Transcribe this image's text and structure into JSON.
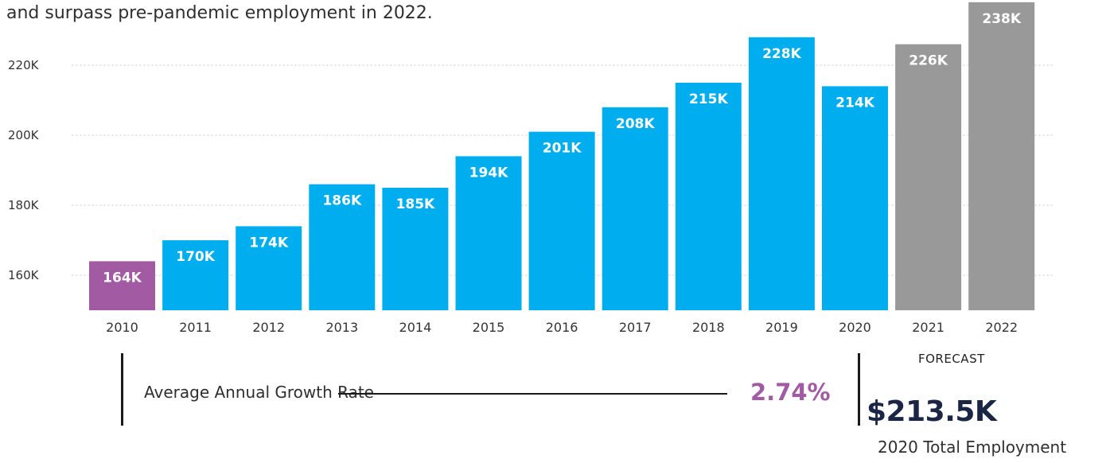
{
  "intro_text": "and surpass pre-pandemic employment in 2022.",
  "colors": {
    "base_year": "#a25ba2",
    "actual": "#00aeef",
    "forecast": "#999999",
    "grid": "#d9d9d9"
  },
  "chart_data": {
    "type": "bar",
    "title": "",
    "xlabel": "",
    "ylabel": "",
    "categories": [
      "2010",
      "2011",
      "2012",
      "2013",
      "2014",
      "2015",
      "2016",
      "2017",
      "2018",
      "2019",
      "2020",
      "2021",
      "2022"
    ],
    "values": [
      164000,
      170000,
      174000,
      186000,
      185000,
      194000,
      201000,
      208000,
      215000,
      228000,
      214000,
      226000,
      238000
    ],
    "data_labels": [
      "164K",
      "170K",
      "174K",
      "186K",
      "185K",
      "194K",
      "201K",
      "208K",
      "215K",
      "228K",
      "214K",
      "226K",
      "238K"
    ],
    "bar_kinds": [
      "base",
      "actual",
      "actual",
      "actual",
      "actual",
      "actual",
      "actual",
      "actual",
      "actual",
      "actual",
      "actual",
      "forecast",
      "forecast"
    ],
    "ylim": [
      150000,
      234000
    ],
    "yticks": [
      160000,
      180000,
      200000,
      220000
    ],
    "ytick_labels": [
      "160K",
      "180K",
      "200K",
      "220K"
    ],
    "grid": true,
    "legend": "none"
  },
  "forecast_label": "FORECAST",
  "growth": {
    "label": "Average Annual Growth Rate",
    "value": "2.74%"
  },
  "total": {
    "value": "$213.5K",
    "caption": "2020 Total Employment"
  }
}
